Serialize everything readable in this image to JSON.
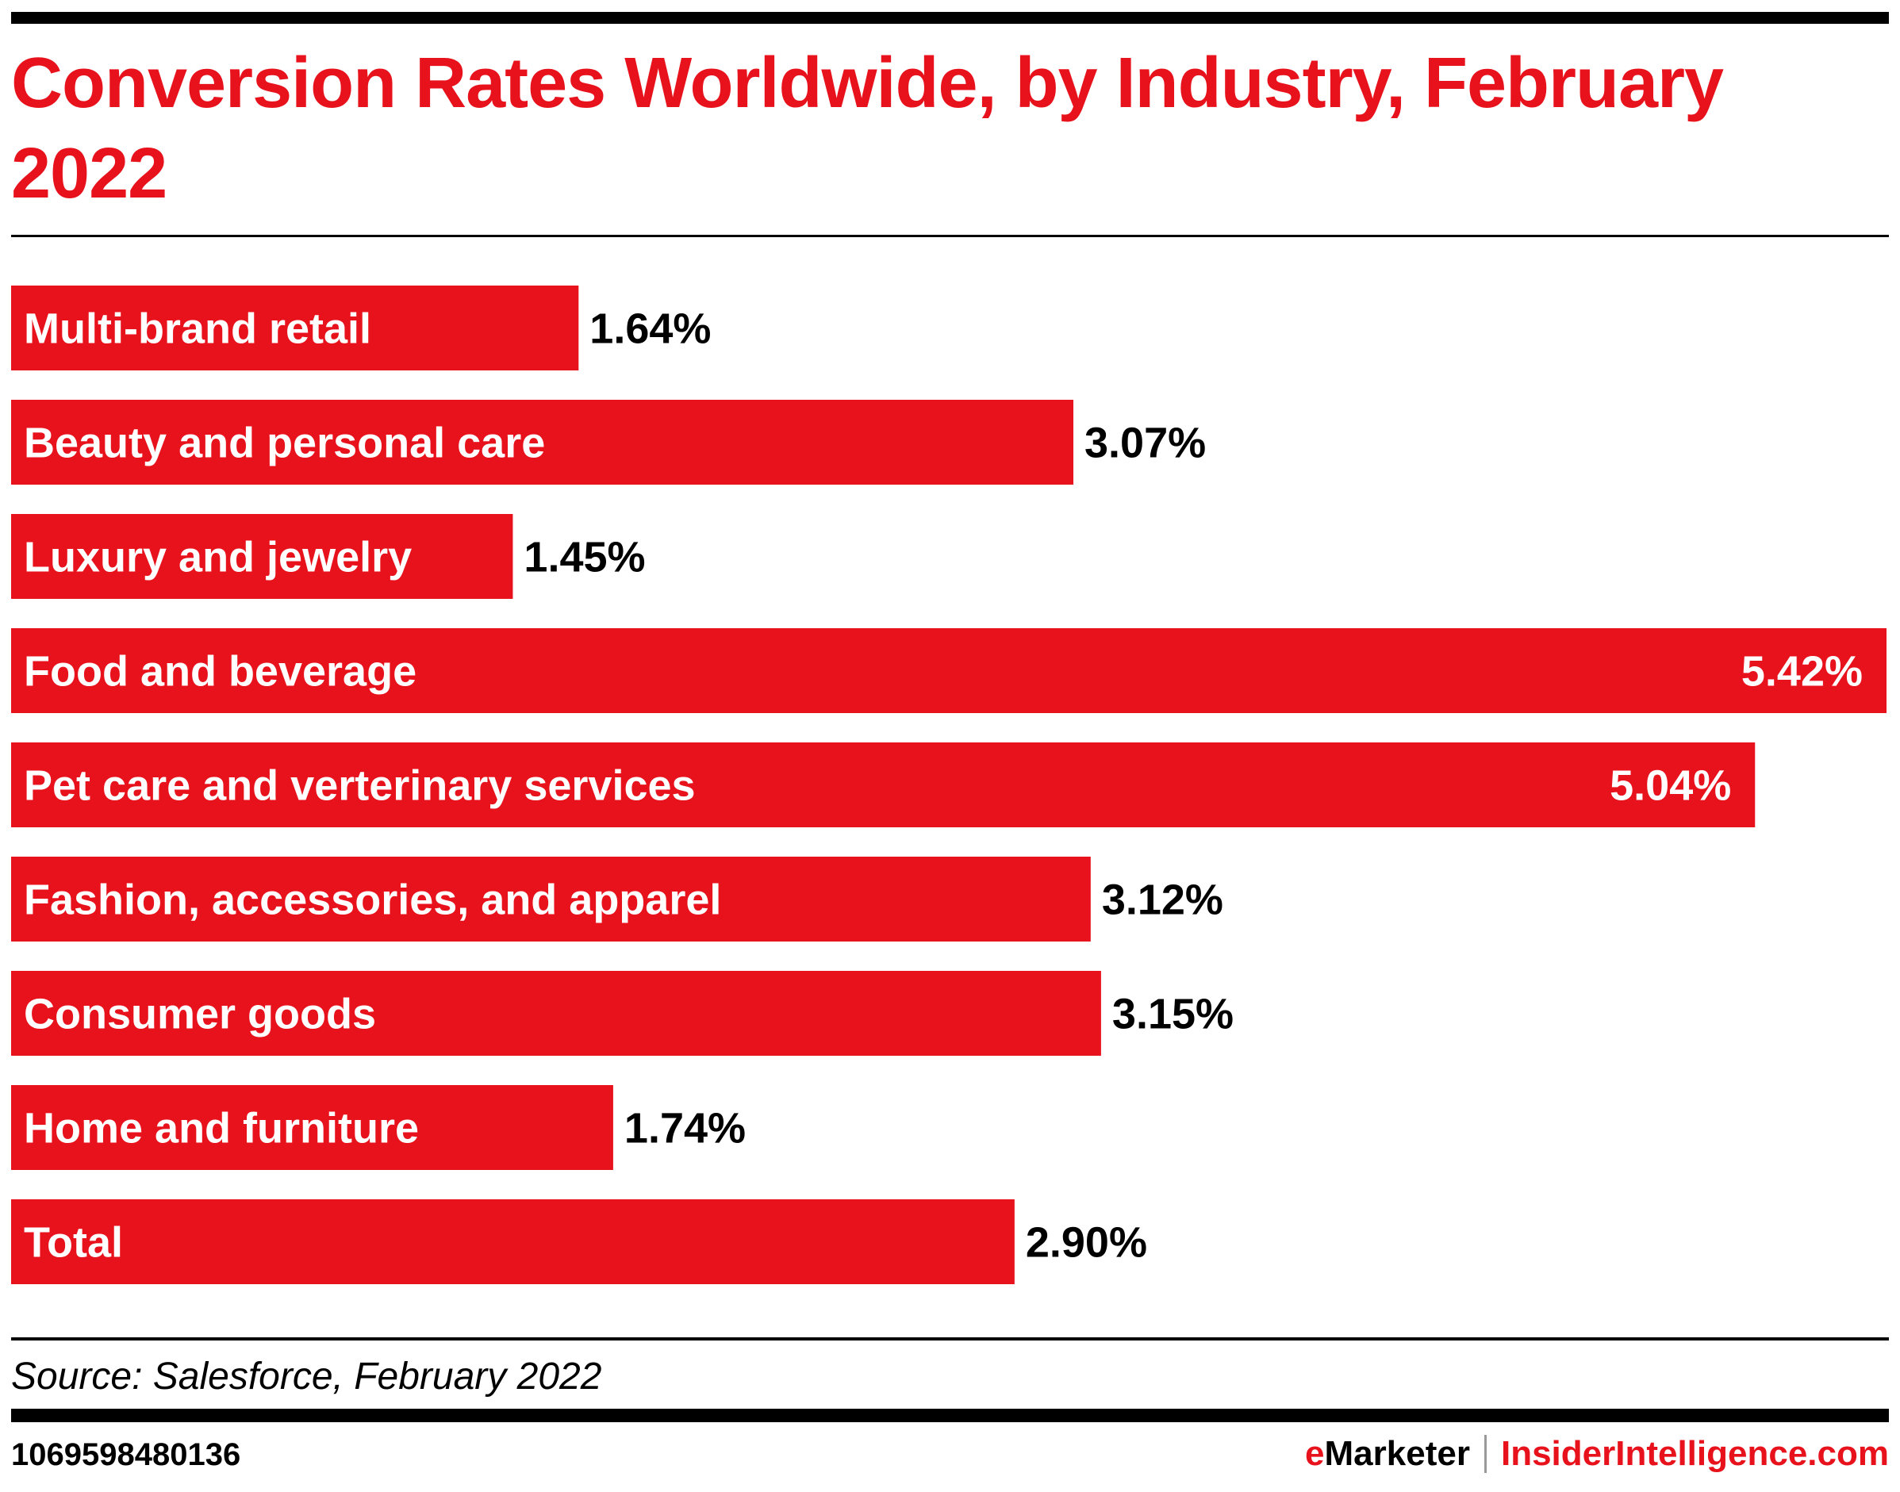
{
  "chart_data": {
    "type": "bar",
    "orientation": "horizontal",
    "title": "Conversion Rates Worldwide, by Industry, February 2022",
    "categories": [
      "Multi-brand retail",
      "Beauty and personal care",
      "Luxury and jewelry",
      "Food and beverage",
      "Pet care and verterinary services",
      "Fashion, accessories, and apparel",
      "Consumer goods",
      "Home and furniture",
      "Total"
    ],
    "values": [
      1.64,
      3.07,
      1.45,
      5.42,
      5.04,
      3.12,
      3.15,
      1.74,
      2.9
    ],
    "value_labels": [
      "1.64%",
      "3.07%",
      "1.45%",
      "5.42%",
      "5.04%",
      "3.12%",
      "3.15%",
      "1.74%",
      "2.90%"
    ],
    "xlim": [
      0,
      5.42
    ],
    "grid": false,
    "bar_color": "#e8121c"
  },
  "source": "Source: Salesforce, February 2022",
  "chart_id": "1069598480136",
  "brand": {
    "emarketer_e": "e",
    "emarketer_rest": "Marketer",
    "insider": "InsiderIntelligence.com"
  }
}
